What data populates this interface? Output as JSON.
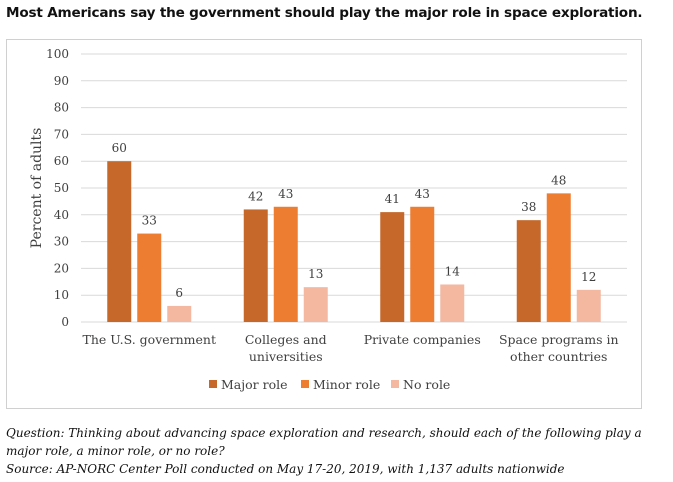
{
  "title": "Most Americans say the government should play the major role in space exploration.",
  "question": "Question: Thinking about advancing space exploration and research, should each of the following play a",
  "question_cont": "major role, a minor role, or no role?",
  "source": "Source: AP-NORC Center Poll conducted on May 17-20, 2019, with 1,137 adults nationwide",
  "colors": {
    "major": "#c5682a",
    "minor": "#ed7d31",
    "none": "#f4b8a0",
    "grid": "#d9d9d9",
    "text": "#404040"
  },
  "chart_data": {
    "type": "bar",
    "categories": [
      [
        "The U.S. government"
      ],
      [
        "Colleges and",
        "universities"
      ],
      [
        "Private companies"
      ],
      [
        "Space programs in",
        "other countries"
      ]
    ],
    "series": [
      {
        "name": "Major role",
        "values": [
          60,
          42,
          41,
          38
        ]
      },
      {
        "name": "Minor role",
        "values": [
          33,
          43,
          43,
          48
        ]
      },
      {
        "name": "No role",
        "values": [
          6,
          13,
          14,
          12
        ]
      }
    ],
    "ylabel": "Percent of adults",
    "ylim": [
      0,
      100
    ],
    "yticks": [
      0,
      10,
      20,
      30,
      40,
      50,
      60,
      70,
      80,
      90,
      100
    ],
    "grid": true,
    "legend": "bottom",
    "data_labels": true
  }
}
